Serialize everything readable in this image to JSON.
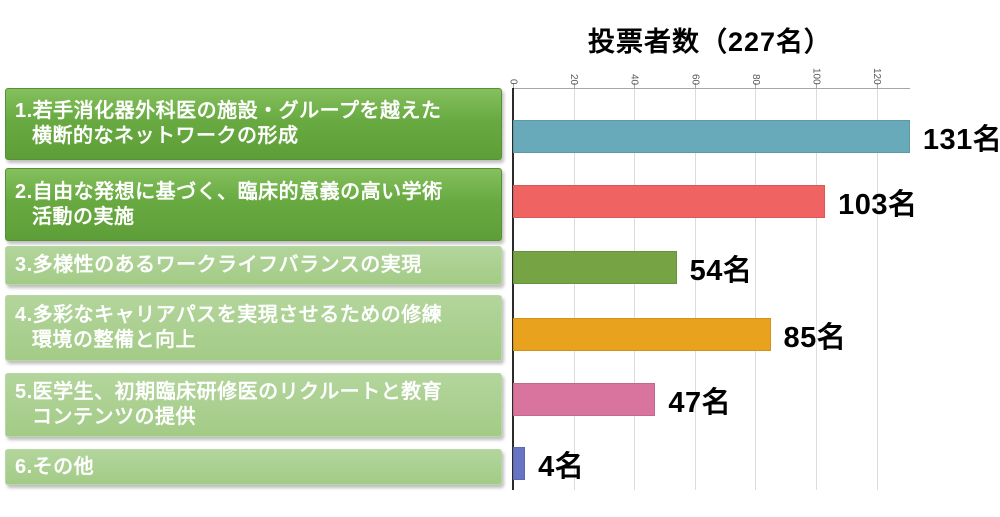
{
  "chart_data": {
    "type": "bar",
    "orientation": "horizontal",
    "title": "投票者数（227名）",
    "categories": [
      {
        "style": "dark",
        "lines": [
          "1.若手消化器外科医の施設・グループを越えた",
          "横断的なネットワークの形成"
        ]
      },
      {
        "style": "dark",
        "lines": [
          "2.自由な発想に基づく、臨床的意義の高い学術",
          "活動の実施"
        ]
      },
      {
        "style": "light",
        "lines": [
          "3.多様性のあるワークライフバランスの実現"
        ]
      },
      {
        "style": "light",
        "lines": [
          "4.多彩なキャリアパスを実現させるための修練",
          "環境の整備と向上"
        ]
      },
      {
        "style": "light",
        "lines": [
          "5.医学生、初期臨床研修医のリクルートと教育",
          "コンテンツの提供"
        ]
      },
      {
        "style": "light",
        "lines": [
          "6.その他"
        ]
      }
    ],
    "values": [
      131,
      103,
      54,
      85,
      47,
      4
    ],
    "value_labels": [
      "131名",
      "103名",
      "54名",
      "85名",
      "47名",
      "4名"
    ],
    "bar_colors": [
      "#68aaba",
      "#ef6363",
      "#76a343",
      "#e9a21e",
      "#d8749d",
      "#6774c4"
    ],
    "axis": {
      "ticks": [
        0,
        20,
        40,
        60,
        80,
        100,
        120
      ],
      "range": [
        0,
        131
      ],
      "tick_labels_rotated": true
    },
    "grid": true,
    "legend_position": "none",
    "xlabel": "",
    "ylabel": ""
  },
  "colors": {
    "gridline": "#dcdcdc",
    "axis_line": "#a6a6a6",
    "tick_label": "#595959",
    "value_label": "#000000",
    "category_box_dark": "#66a53e",
    "category_box_light": "#a8ce8e"
  }
}
